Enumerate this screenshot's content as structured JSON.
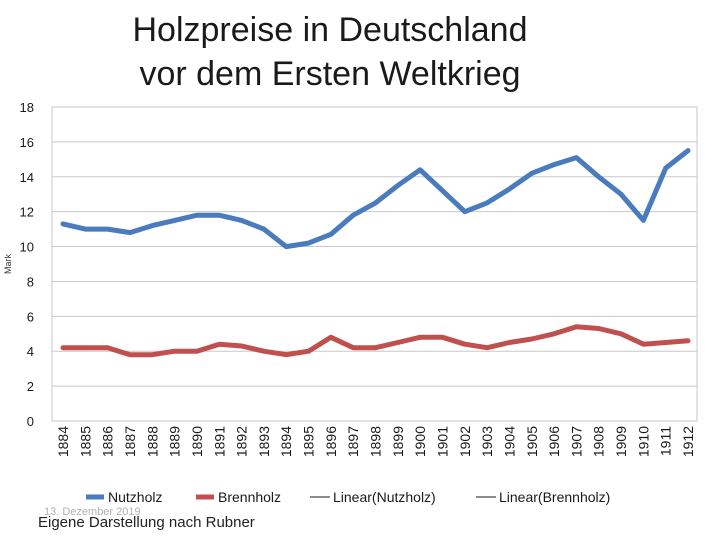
{
  "title_line1": "Holzpreise in Deutschland",
  "title_line2": "vor dem Ersten Weltkrieg",
  "footer": "Eigene Darstellung nach Rubner",
  "footer_date": "13. Dezember 2019",
  "chart_data": {
    "type": "line",
    "ylabel": "Mark",
    "ylim": [
      0,
      18
    ],
    "yticks": [
      0,
      2,
      4,
      6,
      8,
      10,
      12,
      14,
      16,
      18
    ],
    "grid": true,
    "legend_position": "bottom",
    "categories": [
      "1884",
      "1885",
      "1886",
      "1887",
      "1888",
      "1889",
      "1890",
      "1891",
      "1892",
      "1893",
      "1894",
      "1895",
      "1896",
      "1897",
      "1898",
      "1899",
      "1900",
      "1901",
      "1902",
      "1903",
      "1904",
      "1905",
      "1906",
      "1907",
      "1908",
      "1909",
      "1910",
      "1911",
      "1912"
    ],
    "series": [
      {
        "name": "Nutzholz",
        "color": "#4a7bbf",
        "values": [
          11.3,
          11.0,
          11.0,
          10.8,
          11.2,
          11.5,
          11.8,
          11.8,
          11.5,
          11.0,
          10.0,
          10.2,
          10.7,
          11.8,
          12.5,
          13.5,
          14.4,
          13.2,
          12.0,
          12.5,
          13.3,
          14.2,
          14.7,
          15.1,
          14.0,
          13.0,
          11.5,
          14.5,
          15.5
        ]
      },
      {
        "name": "Brennholz",
        "color": "#c0504d",
        "values": [
          4.2,
          4.2,
          4.2,
          3.8,
          3.8,
          4.0,
          4.0,
          4.4,
          4.3,
          4.0,
          3.8,
          4.0,
          4.8,
          4.2,
          4.2,
          4.5,
          4.8,
          4.8,
          4.4,
          4.2,
          4.5,
          4.7,
          5.0,
          5.4,
          5.3,
          5.0,
          4.4,
          4.5,
          4.6
        ]
      }
    ],
    "trendlines": [
      {
        "name": "Linear(Nutzholz)",
        "color": "#1a1a1a"
      },
      {
        "name": "Linear(Brennholz)",
        "color": "#1a1a1a"
      }
    ]
  }
}
